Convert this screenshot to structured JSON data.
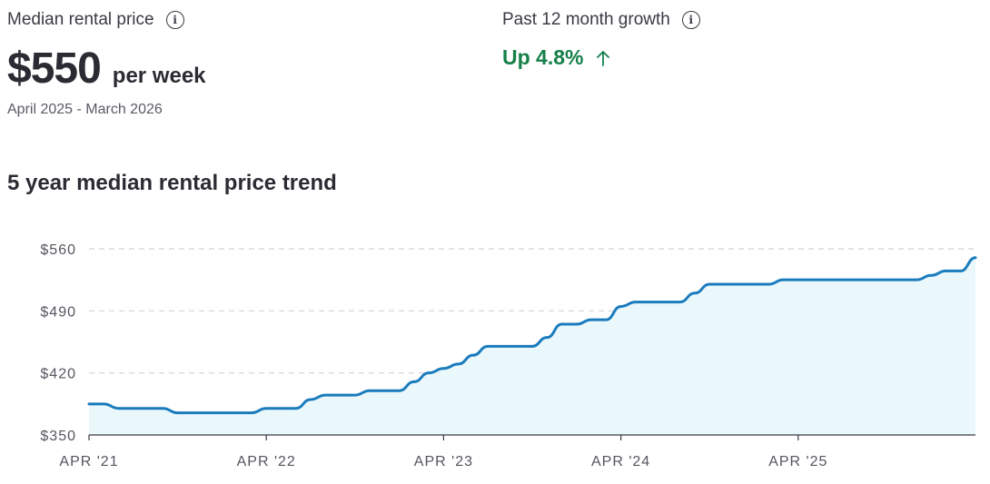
{
  "median": {
    "label": "Median rental price",
    "value": "$550",
    "unit": "per week",
    "period": "April 2025 - March 2026"
  },
  "growth": {
    "label": "Past 12 month growth",
    "value": "Up 4.8%",
    "direction": "up"
  },
  "icons": {
    "info": "info-icon",
    "up": "arrow-up-icon"
  },
  "colors": {
    "line": "#1a7bbd",
    "fill": "#eaf8fc",
    "positive": "#16804a"
  },
  "chart_data": {
    "type": "area",
    "title": "5 year median rental price trend",
    "xlabel": "",
    "ylabel": "",
    "x_range": [
      "2021-04",
      "2026-03"
    ],
    "ylim": [
      350,
      560
    ],
    "yticks": [
      {
        "value": 560,
        "label": "$560"
      },
      {
        "value": 490,
        "label": "$490"
      },
      {
        "value": 420,
        "label": "$420"
      },
      {
        "value": 350,
        "label": "$350"
      }
    ],
    "xticks": [
      {
        "date": "2021-04",
        "label": "APR '21"
      },
      {
        "date": "2022-04",
        "label": "APR '22"
      },
      {
        "date": "2023-04",
        "label": "APR '23"
      },
      {
        "date": "2024-04",
        "label": "APR '24"
      },
      {
        "date": "2025-04",
        "label": "APR '25"
      }
    ],
    "grid": true,
    "series": [
      {
        "points": [
          [
            "2021-04",
            385
          ],
          [
            "2021-05",
            385
          ],
          [
            "2021-06",
            380
          ],
          [
            "2021-07",
            380
          ],
          [
            "2021-08",
            380
          ],
          [
            "2021-09",
            380
          ],
          [
            "2021-10",
            375
          ],
          [
            "2021-11",
            375
          ],
          [
            "2021-12",
            375
          ],
          [
            "2022-01",
            375
          ],
          [
            "2022-02",
            375
          ],
          [
            "2022-03",
            375
          ],
          [
            "2022-04",
            380
          ],
          [
            "2022-05",
            380
          ],
          [
            "2022-06",
            380
          ],
          [
            "2022-07",
            390
          ],
          [
            "2022-08",
            395
          ],
          [
            "2022-09",
            395
          ],
          [
            "2022-10",
            395
          ],
          [
            "2022-11",
            400
          ],
          [
            "2022-12",
            400
          ],
          [
            "2023-01",
            400
          ],
          [
            "2023-02",
            410
          ],
          [
            "2023-03",
            420
          ],
          [
            "2023-04",
            425
          ],
          [
            "2023-05",
            430
          ],
          [
            "2023-06",
            440
          ],
          [
            "2023-07",
            450
          ],
          [
            "2023-08",
            450
          ],
          [
            "2023-09",
            450
          ],
          [
            "2023-10",
            450
          ],
          [
            "2023-11",
            460
          ],
          [
            "2023-12",
            475
          ],
          [
            "2024-01",
            475
          ],
          [
            "2024-02",
            480
          ],
          [
            "2024-03",
            480
          ],
          [
            "2024-04",
            495
          ],
          [
            "2024-05",
            500
          ],
          [
            "2024-06",
            500
          ],
          [
            "2024-07",
            500
          ],
          [
            "2024-08",
            500
          ],
          [
            "2024-09",
            510
          ],
          [
            "2024-10",
            520
          ],
          [
            "2024-11",
            520
          ],
          [
            "2024-12",
            520
          ],
          [
            "2025-01",
            520
          ],
          [
            "2025-02",
            520
          ],
          [
            "2025-03",
            525
          ],
          [
            "2025-04",
            525
          ],
          [
            "2025-05",
            525
          ],
          [
            "2025-06",
            525
          ],
          [
            "2025-07",
            525
          ],
          [
            "2025-08",
            525
          ],
          [
            "2025-09",
            525
          ],
          [
            "2025-10",
            525
          ],
          [
            "2025-11",
            525
          ],
          [
            "2025-12",
            525
          ],
          [
            "2026-01",
            530
          ],
          [
            "2026-02",
            535
          ],
          [
            "2026-03",
            535
          ],
          [
            "2026-04",
            550
          ]
        ]
      }
    ]
  }
}
